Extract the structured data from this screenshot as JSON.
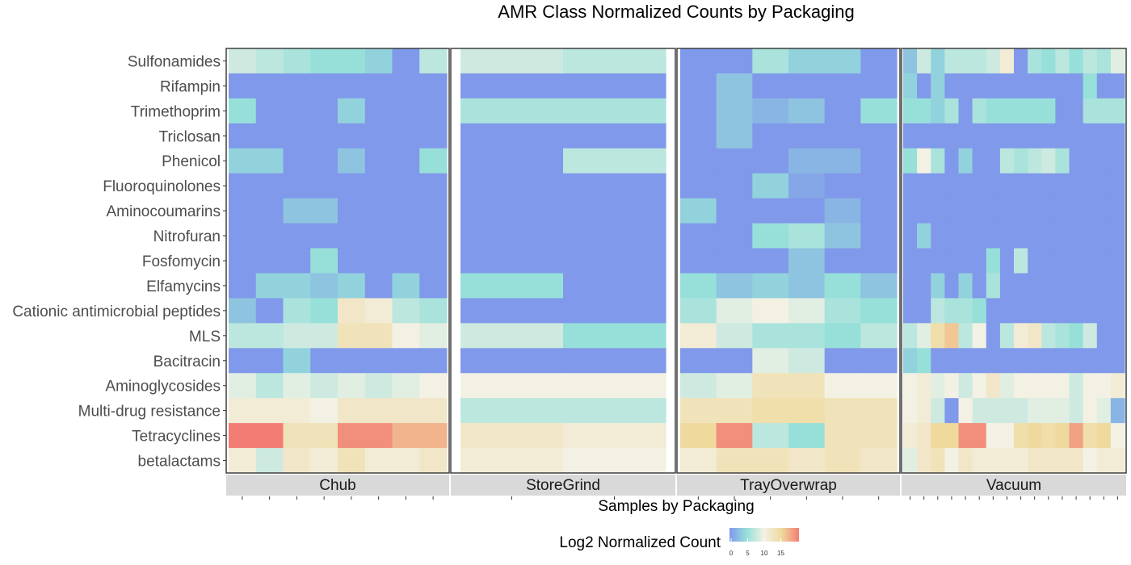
{
  "chart_data": {
    "type": "heatmap",
    "title": "AMR Class Normalized Counts by Packaging",
    "xlabel": "Samples by Packaging",
    "ylabel": "",
    "rows": [
      "Sulfonamides",
      "Rifampin",
      "Trimethoprim",
      "Triclosan",
      "Phenicol",
      "Fluoroquinolones",
      "Aminocoumarins",
      "Nitrofuran",
      "Fosfomycin",
      "Elfamycins",
      "Cationic antimicrobial peptides",
      "MLS",
      "Bacitracin",
      "Aminoglycosides",
      "Multi-drug resistance",
      "Tetracyclines",
      "betalactams"
    ],
    "legend": {
      "title": "Log2 Normalized Count",
      "ticks": [
        0,
        5,
        10,
        15
      ],
      "range": [
        0,
        20
      ],
      "colors": [
        "#8099ea",
        "#97e0da",
        "#f3f1e4",
        "#efd99d",
        "#f37d74"
      ]
    },
    "panels": [
      {
        "name": "Chub",
        "samples": 8,
        "values": [
          [
            8,
            7,
            6,
            5,
            5,
            4,
            0,
            7
          ],
          [
            0,
            0,
            0,
            0,
            0,
            0,
            0,
            0
          ],
          [
            5,
            0,
            0,
            0,
            4,
            0,
            0,
            0
          ],
          [
            0,
            0,
            0,
            0,
            0,
            0,
            0,
            0
          ],
          [
            4,
            4,
            0,
            0,
            3,
            0,
            0,
            5
          ],
          [
            0,
            0,
            0,
            0,
            0,
            0,
            0,
            0
          ],
          [
            0,
            0,
            3,
            3,
            0,
            0,
            0,
            0
          ],
          [
            0,
            0,
            0,
            0,
            0,
            0,
            0,
            0
          ],
          [
            0,
            0,
            0,
            5,
            0,
            0,
            0,
            0
          ],
          [
            0,
            4,
            4,
            3,
            4,
            0,
            4,
            0
          ],
          [
            3,
            0,
            6,
            5,
            12,
            11,
            7,
            6
          ],
          [
            7,
            7,
            8,
            8,
            13,
            13,
            10,
            9
          ],
          [
            0,
            0,
            4,
            0,
            0,
            0,
            0,
            0
          ],
          [
            9,
            7,
            9,
            8,
            9,
            8,
            9,
            10
          ],
          [
            11,
            11,
            11,
            10,
            12,
            12,
            12,
            12
          ],
          [
            20,
            20,
            13,
            13,
            19,
            19,
            17,
            17
          ],
          [
            11,
            8,
            12,
            11,
            13,
            11,
            11,
            12
          ]
        ]
      },
      {
        "name": "StoreGrind",
        "samples": 2,
        "values": [
          [
            8,
            7
          ],
          [
            0,
            0
          ],
          [
            6,
            6
          ],
          [
            0,
            0
          ],
          [
            0,
            7
          ],
          [
            0,
            0
          ],
          [
            0,
            0
          ],
          [
            0,
            0
          ],
          [
            0,
            0
          ],
          [
            5,
            0
          ],
          [
            0,
            0
          ],
          [
            8,
            5
          ],
          [
            0,
            0
          ],
          [
            10,
            10
          ],
          [
            7,
            7
          ],
          [
            12,
            11
          ],
          [
            11,
            10
          ]
        ]
      },
      {
        "name": "TrayOverwrap",
        "samples": 6,
        "values": [
          [
            0,
            0,
            6,
            4,
            4,
            0
          ],
          [
            0,
            3,
            0,
            0,
            0,
            0
          ],
          [
            0,
            3,
            2,
            3,
            0,
            5
          ],
          [
            0,
            3,
            0,
            0,
            0,
            0
          ],
          [
            0,
            0,
            0,
            2,
            2,
            0
          ],
          [
            0,
            0,
            4,
            1,
            0,
            0
          ],
          [
            4,
            0,
            0,
            0,
            2,
            0
          ],
          [
            0,
            0,
            5,
            6,
            3,
            0
          ],
          [
            0,
            0,
            0,
            3,
            0,
            0
          ],
          [
            5,
            3,
            4,
            3,
            5,
            3
          ],
          [
            6,
            9,
            10,
            9,
            6,
            5
          ],
          [
            11,
            8,
            6,
            6,
            5,
            7
          ],
          [
            0,
            0,
            9,
            8,
            0,
            0
          ],
          [
            8,
            9,
            13,
            13,
            10,
            10
          ],
          [
            13,
            13,
            14,
            14,
            13,
            13
          ],
          [
            15,
            19,
            7,
            5,
            13,
            13
          ],
          [
            11,
            13,
            13,
            12,
            13,
            12
          ]
        ]
      },
      {
        "name": "Vacuum",
        "samples": 16,
        "values": [
          [
            3,
            8,
            4,
            7,
            7,
            7,
            8,
            11,
            0,
            6,
            5,
            7,
            5,
            7,
            6,
            9
          ],
          [
            4,
            0,
            4,
            0,
            0,
            0,
            0,
            0,
            0,
            0,
            0,
            0,
            0,
            5,
            0,
            0
          ],
          [
            5,
            5,
            4,
            6,
            0,
            6,
            5,
            5,
            5,
            5,
            5,
            0,
            0,
            6,
            6,
            6
          ],
          [
            0,
            0,
            0,
            0,
            0,
            0,
            0,
            0,
            0,
            0,
            0,
            0,
            0,
            0,
            0,
            0
          ],
          [
            5,
            10,
            6,
            0,
            4,
            0,
            0,
            7,
            6,
            7,
            8,
            6,
            0,
            0,
            0,
            0
          ],
          [
            0,
            0,
            0,
            0,
            0,
            0,
            0,
            0,
            0,
            0,
            0,
            0,
            0,
            0,
            0,
            0
          ],
          [
            0,
            0,
            0,
            0,
            0,
            0,
            0,
            0,
            0,
            0,
            0,
            0,
            0,
            0,
            0,
            0
          ],
          [
            0,
            4,
            0,
            0,
            0,
            0,
            0,
            0,
            0,
            0,
            0,
            0,
            0,
            0,
            0,
            0
          ],
          [
            0,
            0,
            0,
            0,
            0,
            0,
            5,
            0,
            7,
            0,
            0,
            0,
            0,
            0,
            0,
            0
          ],
          [
            0,
            0,
            4,
            0,
            4,
            0,
            6,
            0,
            0,
            0,
            0,
            0,
            0,
            0,
            0,
            0
          ],
          [
            0,
            0,
            7,
            6,
            6,
            5,
            0,
            0,
            0,
            0,
            0,
            0,
            0,
            0,
            0,
            0
          ],
          [
            7,
            9,
            14,
            16,
            7,
            10,
            0,
            7,
            11,
            12,
            7,
            6,
            5,
            8,
            0,
            0
          ],
          [
            4,
            5,
            0,
            0,
            0,
            0,
            0,
            0,
            0,
            0,
            0,
            0,
            0,
            0,
            0,
            0
          ],
          [
            10,
            11,
            9,
            10,
            8,
            10,
            12,
            9,
            10,
            10,
            10,
            10,
            8,
            10,
            10,
            11
          ],
          [
            10,
            11,
            8,
            0,
            10,
            8,
            8,
            8,
            8,
            9,
            9,
            9,
            8,
            10,
            9,
            2
          ],
          [
            11,
            12,
            15,
            15,
            19,
            19,
            10,
            10,
            14,
            15,
            14,
            15,
            18,
            14,
            15,
            10
          ],
          [
            9,
            12,
            13,
            10,
            12,
            11,
            11,
            11,
            11,
            12,
            12,
            12,
            12,
            10,
            11,
            11
          ]
        ]
      }
    ]
  }
}
